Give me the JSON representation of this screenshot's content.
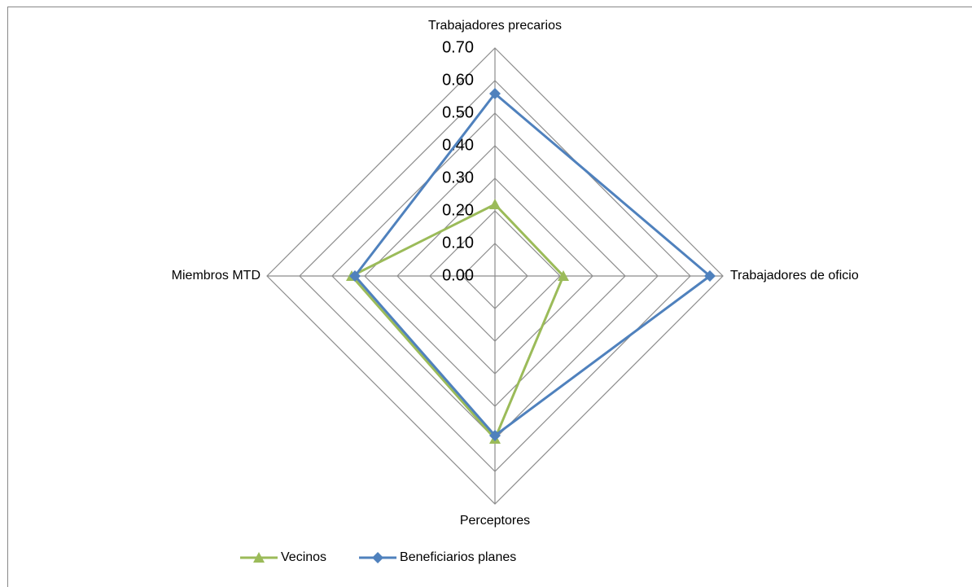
{
  "chart_data": {
    "type": "radar",
    "categories": [
      "Trabajadores precarios",
      "Trabajadores de oficio",
      "Perceptores",
      "Miembros MTD"
    ],
    "series": [
      {
        "name": "Vecinos",
        "color": "#9bbb59",
        "marker": "triangle",
        "values": [
          0.22,
          0.21,
          0.5,
          0.44
        ]
      },
      {
        "name": "Beneficiarios planes",
        "color": "#4f81bd",
        "marker": "diamond",
        "values": [
          0.56,
          0.66,
          0.49,
          0.43
        ]
      }
    ],
    "rlim": [
      0,
      0.7
    ],
    "rticks": [
      {
        "value": 0,
        "label": "0.00"
      },
      {
        "value": 0.1,
        "label": "0.10"
      },
      {
        "value": 0.2,
        "label": "0.20"
      },
      {
        "value": 0.3,
        "label": "0.30"
      },
      {
        "value": 0.4,
        "label": "0.40"
      },
      {
        "value": 0.5,
        "label": "0.50"
      },
      {
        "value": 0.6,
        "label": "0.60"
      },
      {
        "value": 0.7,
        "label": "0.70"
      }
    ],
    "grid": true,
    "legend": "bottom"
  }
}
